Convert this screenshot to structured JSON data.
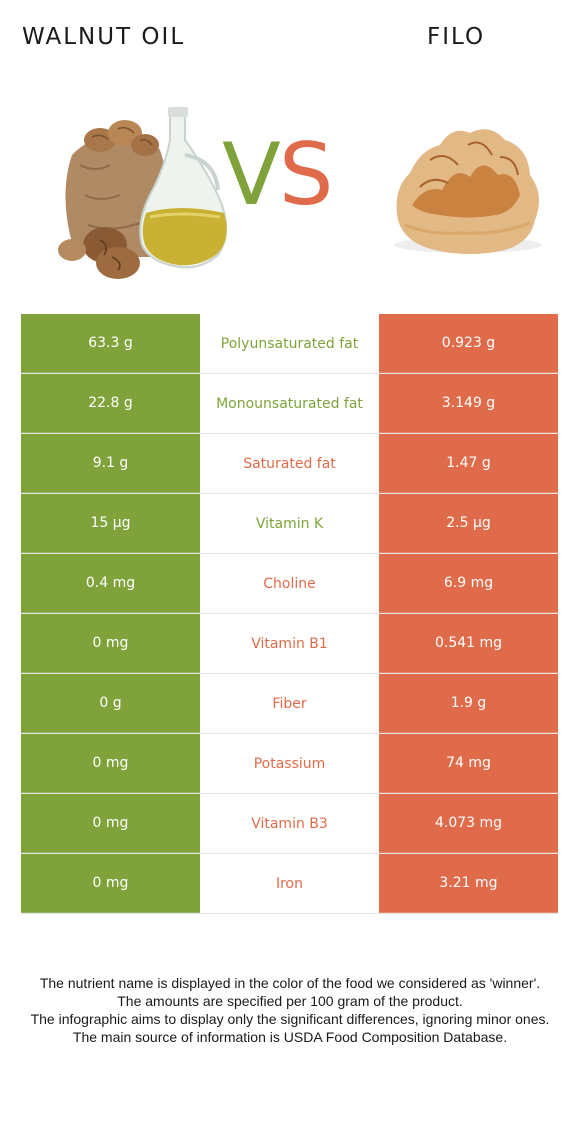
{
  "header": {
    "left_title": "WALNUT OIL",
    "right_title": "FILO",
    "vs_v": "V",
    "vs_s": "S"
  },
  "colors": {
    "left": "#7fa33a",
    "right": "#e06b4a"
  },
  "rows": [
    {
      "left": "63.3 g",
      "nutrient": "Polyunsaturated fat",
      "right": "0.923 g",
      "winner": "left"
    },
    {
      "left": "22.8 g",
      "nutrient": "Monounsaturated fat",
      "right": "3.149 g",
      "winner": "left"
    },
    {
      "left": "9.1 g",
      "nutrient": "Saturated fat",
      "right": "1.47 g",
      "winner": "right"
    },
    {
      "left": "15 µg",
      "nutrient": "Vitamin K",
      "right": "2.5 µg",
      "winner": "left"
    },
    {
      "left": "0.4 mg",
      "nutrient": "Choline",
      "right": "6.9 mg",
      "winner": "right"
    },
    {
      "left": "0 mg",
      "nutrient": "Vitamin B1",
      "right": "0.541 mg",
      "winner": "right"
    },
    {
      "left": "0 g",
      "nutrient": "Fiber",
      "right": "1.9 g",
      "winner": "right"
    },
    {
      "left": "0 mg",
      "nutrient": "Potassium",
      "right": "74 mg",
      "winner": "right"
    },
    {
      "left": "0 mg",
      "nutrient": "Vitamin B3",
      "right": "4.073 mg",
      "winner": "right"
    },
    {
      "left": "0 mg",
      "nutrient": "Iron",
      "right": "3.21 mg",
      "winner": "right"
    }
  ],
  "footnote": {
    "line1": "The nutrient name is displayed in the color of the food we considered as 'winner'.",
    "line2": "The amounts are specified per 100 gram of the product.",
    "line3": "The infographic aims to display only the significant differences, ignoring minor ones.",
    "line4": "The main source of information is USDA Food Composition Database."
  }
}
